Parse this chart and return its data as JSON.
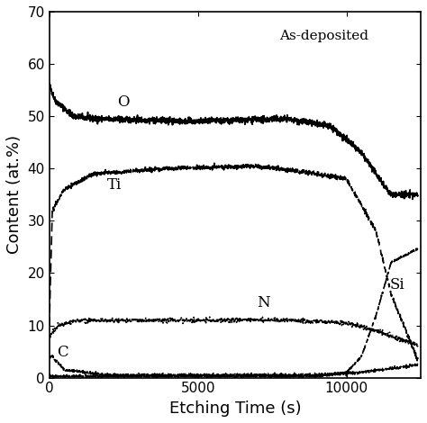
{
  "title": "As-deposited",
  "xlabel": "Etching Time (s)",
  "ylabel": "Content (at.%)",
  "xlim": [
    0,
    12500
  ],
  "ylim": [
    0,
    70
  ],
  "yticks": [
    0,
    10,
    20,
    30,
    40,
    50,
    60,
    70
  ],
  "xticks": [
    0,
    5000,
    10000
  ],
  "background_color": "#ffffff",
  "O_label": "O",
  "Ti_label": "Ti",
  "N_label": "N",
  "C_label": "C",
  "Si_label": "Si"
}
